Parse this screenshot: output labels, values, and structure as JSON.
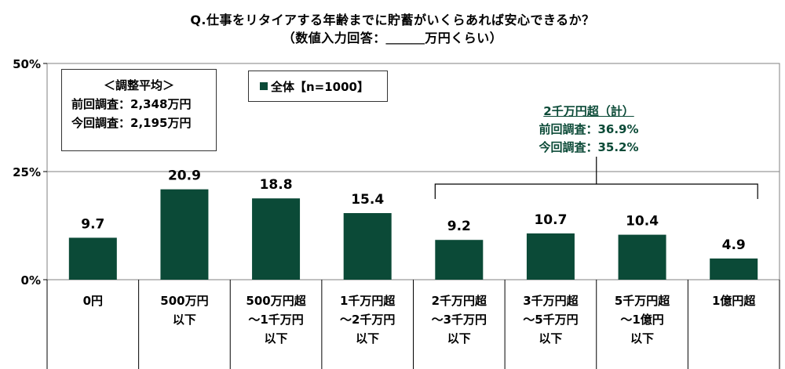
{
  "title_line1": "Q.仕事をリタイアする年齢までに貯蓄がいくらあれば安心できるか？",
  "title_line2": "（数値入力回答：＿＿＿万円くらい）",
  "average_box": {
    "heading": "＜調整平均＞",
    "previous": "前回調査：2,348万円",
    "current": "今回調査：2,195万円"
  },
  "legend": {
    "label": "全体【n=1000】"
  },
  "group_note": {
    "heading": "2千万円超（計）",
    "previous": "前回調査：36.9%",
    "current": "今回調査：35.2%"
  },
  "colors": {
    "bar": "#0b4a37",
    "note_text": "#0b4a37",
    "gridline": "#808080"
  },
  "chart_data": {
    "type": "bar",
    "title": "Q.仕事をリタイアする年齢までに貯蓄がいくらあれば安心できるか？",
    "categories": [
      [
        "0円"
      ],
      [
        "500万円",
        "以下"
      ],
      [
        "500万円超",
        "～1千万円",
        "以下"
      ],
      [
        "1千万円超",
        "～2千万円",
        "以下"
      ],
      [
        "2千万円超",
        "～3千万円",
        "以下"
      ],
      [
        "3千万円超",
        "～5千万円",
        "以下"
      ],
      [
        "5千万円超",
        "～1億円",
        "以下"
      ],
      [
        "1億円超"
      ]
    ],
    "series": [
      {
        "name": "全体【n=1000】",
        "values": [
          9.7,
          20.9,
          18.8,
          15.4,
          9.2,
          10.7,
          10.4,
          4.9
        ],
        "labels": [
          "9.7",
          "20.9",
          "18.8",
          "15.4",
          "9.2",
          "10.7",
          "10.4",
          "4.9"
        ]
      }
    ],
    "yticks": [
      "0%",
      "25%",
      "50%"
    ],
    "ylim": [
      0,
      50
    ],
    "grid": true,
    "bracket_categories": [
      4,
      7
    ]
  }
}
